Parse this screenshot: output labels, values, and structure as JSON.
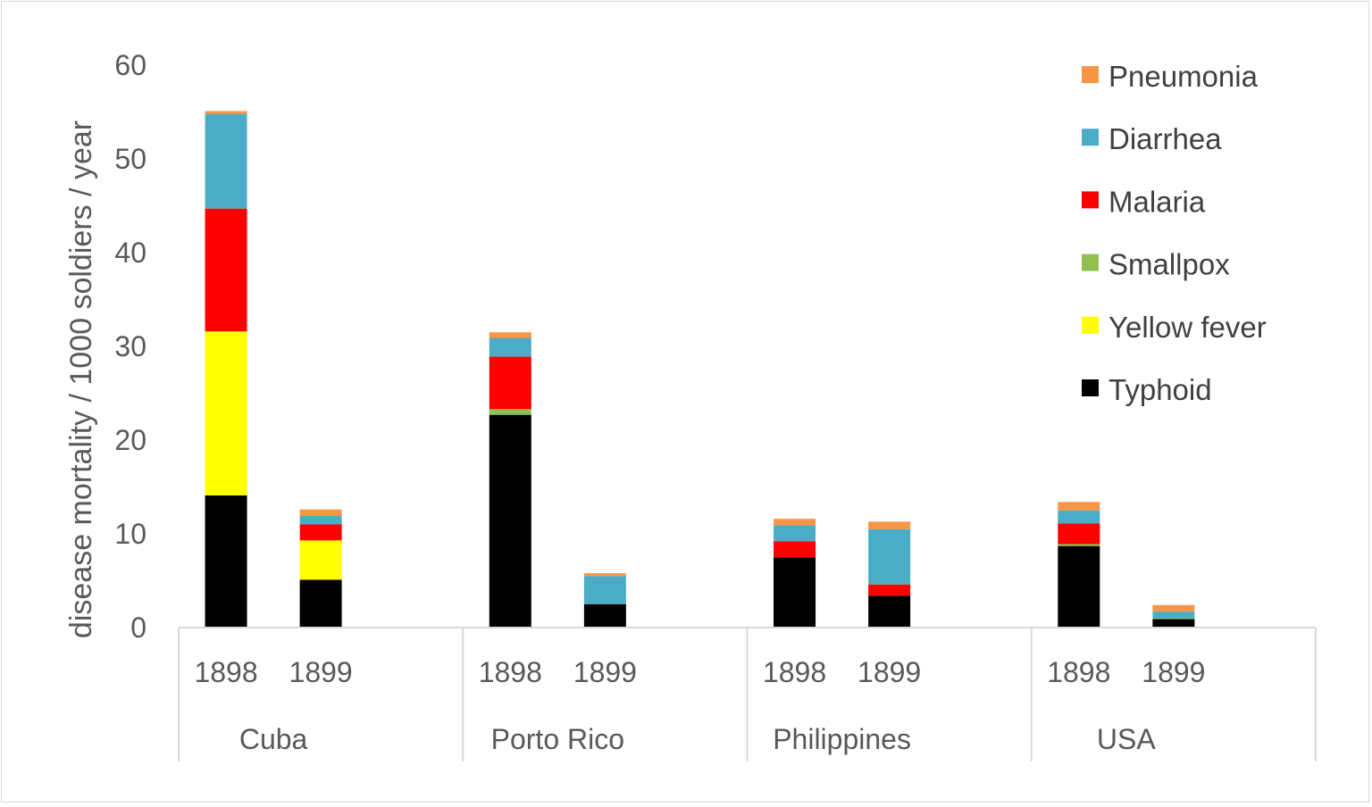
{
  "chart_data": {
    "type": "bar",
    "stacked": true,
    "ylabel": "disease mortality / 1000 soldiers / year",
    "xlabel": "",
    "ylim": [
      0,
      60
    ],
    "yticks": [
      0,
      10,
      20,
      30,
      40,
      50,
      60
    ],
    "grid": false,
    "legend_position": "top-right",
    "groups": [
      {
        "name": "Cuba",
        "categories": [
          "1898",
          "1899"
        ]
      },
      {
        "name": "Porto Rico",
        "categories": [
          "1898",
          "1899"
        ]
      },
      {
        "name": "Philippines",
        "categories": [
          "1898",
          "1899"
        ]
      },
      {
        "name": "USA",
        "categories": [
          "1898",
          "1899"
        ]
      }
    ],
    "series": [
      {
        "name": "Typhoid",
        "color": "#000000",
        "values": [
          14.1,
          5.1,
          22.7,
          2.5,
          7.5,
          3.4,
          8.7,
          0.9
        ]
      },
      {
        "name": "Yellow fever",
        "color": "#ffff00",
        "values": [
          17.5,
          4.2,
          0.0,
          0.0,
          0.0,
          0.0,
          0.0,
          0.0
        ]
      },
      {
        "name": "Smallpox",
        "color": "#92c050",
        "values": [
          0.0,
          0.0,
          0.6,
          0.0,
          0.0,
          0.0,
          0.2,
          0.1
        ]
      },
      {
        "name": "Malaria",
        "color": "#ff0000",
        "values": [
          13.1,
          1.7,
          5.6,
          0.0,
          1.7,
          1.2,
          2.2,
          0.0
        ]
      },
      {
        "name": "Diarrhea",
        "color": "#4bacc6",
        "values": [
          10.1,
          0.9,
          2.0,
          3.0,
          1.7,
          5.9,
          1.4,
          0.7
        ]
      },
      {
        "name": "Pneumonia",
        "color": "#f79646",
        "values": [
          0.3,
          0.7,
          0.6,
          0.3,
          0.7,
          0.8,
          0.9,
          0.7
        ]
      }
    ]
  }
}
